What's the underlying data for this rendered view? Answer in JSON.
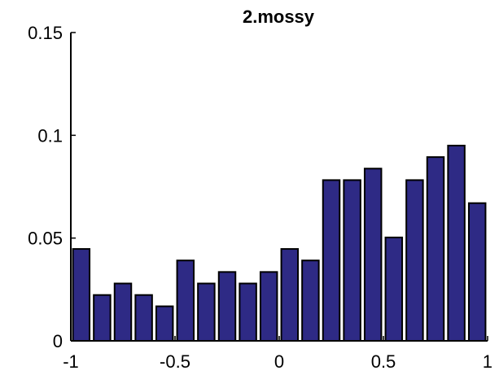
{
  "chart_data": {
    "type": "bar",
    "title": "2.mossy",
    "xlabel": "",
    "ylabel": "",
    "xlim": [
      -1,
      1
    ],
    "ylim": [
      0,
      0.15
    ],
    "x_ticks": [
      "-1",
      "-0.5",
      "0",
      "0.5",
      "1"
    ],
    "y_ticks": [
      "0",
      "0.05",
      "0.1",
      "0.15"
    ],
    "grid": false,
    "x": [
      -0.95,
      -0.85,
      -0.75,
      -0.65,
      -0.55,
      -0.45,
      -0.35,
      -0.25,
      -0.15,
      -0.05,
      0.05,
      0.15,
      0.25,
      0.35,
      0.45,
      0.55,
      0.65,
      0.75,
      0.85,
      0.95
    ],
    "values": [
      0.0447,
      0.0223,
      0.0279,
      0.0223,
      0.0168,
      0.0391,
      0.0279,
      0.0335,
      0.0279,
      0.0335,
      0.0447,
      0.0391,
      0.0782,
      0.0782,
      0.0838,
      0.0503,
      0.0782,
      0.0894,
      0.095,
      0.067
    ],
    "colors": {
      "bar_fill": "#2e2a85",
      "bar_edge": "#000000",
      "axis": "#000000"
    }
  }
}
